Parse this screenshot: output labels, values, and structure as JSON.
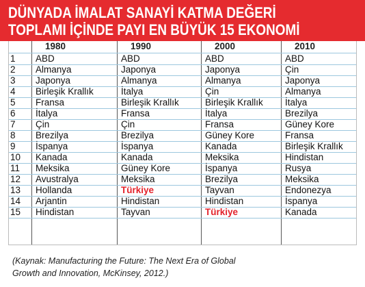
{
  "header": {
    "title_lines": [
      "DÜNYADA İMALAT SANAYİ KATMA DEĞERİ",
      "TOPLAMI İÇİNDE PAYI EN BÜYÜK 15 EKONOMİ"
    ],
    "background": "#e52b2f"
  },
  "table": {
    "columns": [
      "1980",
      "1990",
      "2000",
      "2010"
    ],
    "rows": [
      [
        "1",
        "ABD",
        "ABD",
        "ABD",
        "ABD"
      ],
      [
        "2",
        "Almanya",
        "Japonya",
        "Japonya",
        "Çin"
      ],
      [
        "3",
        "Japonya",
        "Almanya",
        "Almanya",
        "Japonya"
      ],
      [
        "4",
        "Birleşik Krallık",
        "İtalya",
        "Çin",
        "Almanya"
      ],
      [
        "5",
        "Fransa",
        "Birleşik Krallık",
        "Birleşik Krallık",
        "İtalya"
      ],
      [
        "6",
        "İtalya",
        "Fransa",
        "İtalya",
        "Brezilya"
      ],
      [
        "7",
        "Çin",
        "Çin",
        "Fransa",
        "Güney Kore"
      ],
      [
        "8",
        "Brezilya",
        "Brezilya",
        "Güney Kore",
        "Fransa"
      ],
      [
        "9",
        "İspanya",
        "İspanya",
        "Kanada",
        "Birleşik Krallık"
      ],
      [
        "10",
        "Kanada",
        "Kanada",
        "Meksika",
        "Hindistan"
      ],
      [
        "11",
        "Meksika",
        "Güney Kore",
        "İspanya",
        "Rusya"
      ],
      [
        "12",
        "Avustralya",
        "Meksika",
        "Brezilya",
        "Meksika"
      ],
      [
        "13",
        "Hollanda",
        "Türkiye",
        "Tayvan",
        "Endonezya"
      ],
      [
        "14",
        "Arjantin",
        "Hindistan",
        "Hindistan",
        "İspanya"
      ],
      [
        "15",
        "Hindistan",
        "Tayvan",
        "Türkiye",
        "Kanada"
      ]
    ],
    "highlight_text": "Türkiye",
    "highlight_color": "#e3222b"
  },
  "source": {
    "lines": [
      "(Kaynak: Manufacturing the Future: The Next Era of Global",
      "Growth and Innovation, McKinsey, 2012.)"
    ]
  }
}
